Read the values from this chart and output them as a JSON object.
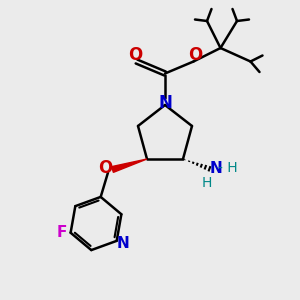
{
  "bg_color": "#ebebeb",
  "bond_color": "#000000",
  "N_color": "#0000cc",
  "O_color": "#cc0000",
  "F_color": "#cc00cc",
  "NH_color": "#008888",
  "bond_width": 1.8,
  "figsize": [
    3.0,
    3.0
  ],
  "dpi": 100,
  "xlim": [
    0,
    10
  ],
  "ylim": [
    0,
    10
  ]
}
